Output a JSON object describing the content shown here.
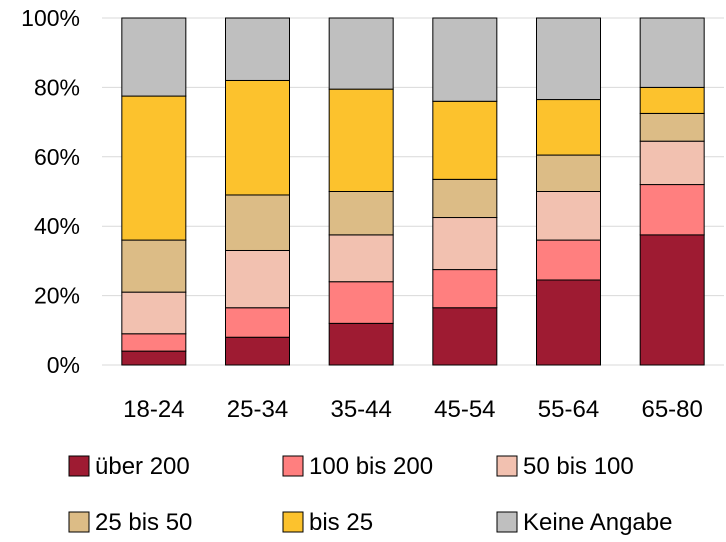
{
  "chart_data": {
    "type": "bar",
    "stacked": true,
    "percent": true,
    "categories": [
      "18-24",
      "25-34",
      "35-44",
      "45-54",
      "55-64",
      "65-80"
    ],
    "series": [
      {
        "name": "über 200",
        "color": "#9e1b32",
        "values": [
          4,
          8,
          12,
          16.5,
          24.5,
          37.5
        ]
      },
      {
        "name": "100 bis 200",
        "color": "#ff7f7f",
        "values": [
          5,
          8.5,
          12,
          11,
          11.5,
          14.5
        ]
      },
      {
        "name": "50 bis 100",
        "color": "#f2c1b0",
        "values": [
          12,
          16.5,
          13.5,
          15,
          14,
          12.5
        ]
      },
      {
        "name": "25 bis 50",
        "color": "#dcbc86",
        "values": [
          15,
          16,
          12.5,
          11,
          10.5,
          8
        ]
      },
      {
        "name": "bis 25",
        "color": "#fcc22d",
        "values": [
          41.5,
          33,
          29.5,
          22.5,
          16,
          7.5
        ]
      },
      {
        "name": "Keine Angabe",
        "color": "#bfbfbf",
        "values": [
          22.5,
          18,
          20.5,
          24,
          23.5,
          20
        ]
      }
    ],
    "y_ticks": [
      "0%",
      "20%",
      "40%",
      "60%",
      "80%",
      "100%"
    ],
    "ylim": [
      0,
      100
    ],
    "grid": true,
    "legend": "bottom",
    "title": "",
    "xlabel": "",
    "ylabel": ""
  }
}
